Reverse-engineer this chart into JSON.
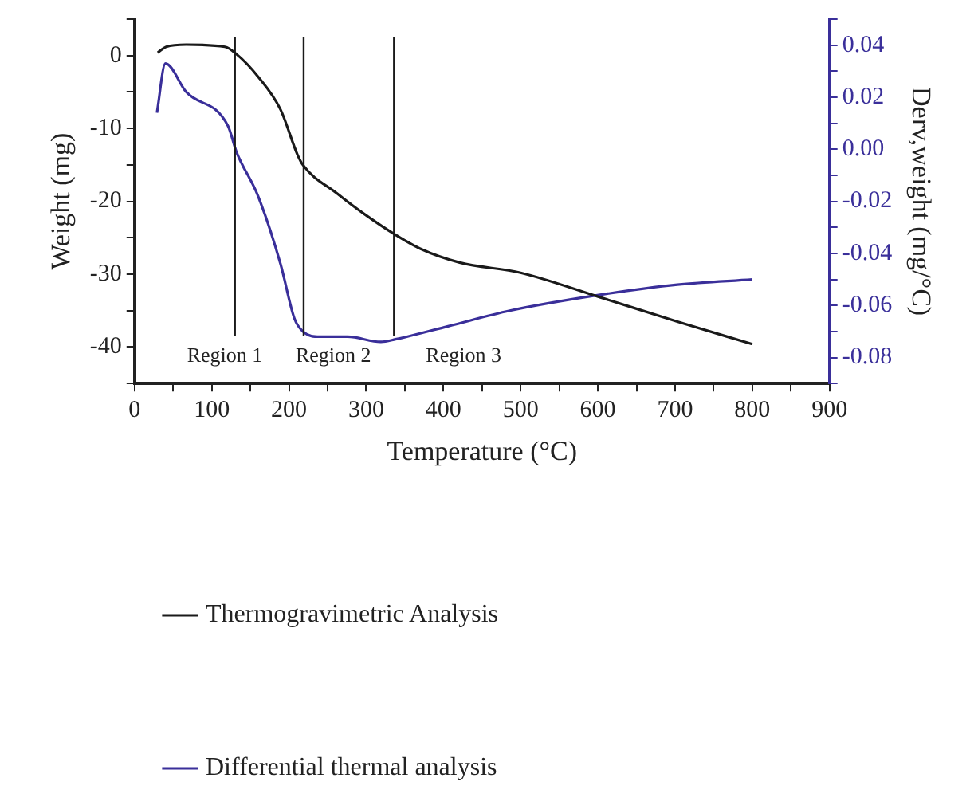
{
  "chart_data": {
    "type": "line",
    "xlabel": "Temperature (°C)",
    "ylabel": "Weight (mg)",
    "y2label": "Derv,weight (mg/°C)",
    "xlim": [
      0,
      900
    ],
    "xticks": [
      0,
      {
        "value": 50,
        "label": null
      },
      100,
      {
        "value": 150,
        "label": null
      },
      200,
      {
        "value": 250,
        "label": null
      },
      300,
      {
        "value": 350,
        "label": null
      },
      400,
      {
        "value": 450,
        "label": null
      },
      500,
      {
        "value": 550,
        "label": null
      },
      600,
      {
        "value": 650,
        "label": null
      },
      700,
      {
        "value": 750,
        "label": null
      },
      800,
      {
        "value": 850,
        "label": null
      },
      900
    ],
    "ylim": [
      -45,
      5
    ],
    "yticks": [
      {
        "value": -45,
        "label": null
      },
      -40,
      {
        "value": -35,
        "label": null
      },
      -30,
      {
        "value": -25,
        "label": null
      },
      -20,
      {
        "value": -15,
        "label": null
      },
      -10,
      {
        "value": -5,
        "label": null
      },
      0,
      {
        "value": 5,
        "label": null
      }
    ],
    "y2lim": [
      -0.09,
      0.05
    ],
    "y2ticks": [
      {
        "value": -0.09,
        "label": null
      },
      {
        "value": -0.08,
        "label": "-0.08"
      },
      {
        "value": -0.07,
        "label": null
      },
      {
        "value": -0.06,
        "label": "-0.06"
      },
      {
        "value": -0.05,
        "label": null
      },
      {
        "value": -0.04,
        "label": "-0.04"
      },
      {
        "value": -0.03,
        "label": null
      },
      {
        "value": -0.02,
        "label": "-0.02"
      },
      {
        "value": -0.01,
        "label": null
      },
      {
        "value": 0,
        "label": "0.00"
      },
      {
        "value": 0.01,
        "label": null
      },
      {
        "value": 0.02,
        "label": "0.02"
      },
      {
        "value": 0.03,
        "label": null
      },
      {
        "value": 0.04,
        "label": "0.04"
      },
      {
        "value": 0.05,
        "label": null
      }
    ],
    "series": [
      {
        "name": "Thermogravimetric Analysis",
        "color": "#1a1a1a",
        "x": [
          30,
          41,
          67,
          117,
          132,
          160,
          189,
          211,
          218,
          262,
          297,
          338,
          370,
          421,
          500,
          601,
          703,
          800
        ],
        "values": [
          0.4,
          1.2,
          1.5,
          1.2,
          0.2,
          -2.9,
          -7.4,
          -13.6,
          -15,
          -18.9,
          -21.7,
          -24.6,
          -26.5,
          -28.4,
          -29.8,
          -33.1,
          -36.5,
          -39.6
        ]
      },
      {
        "name": "Differential thermal analysis",
        "color": "#3a2f9a",
        "axis": "y2",
        "x": [
          29,
          40,
          67,
          121,
          132,
          160,
          189,
          207,
          218,
          240,
          276,
          319,
          338,
          406,
          486,
          601,
          703,
          800
        ],
        "values": [
          0.014,
          0.033,
          0.022,
          0.009,
          -0.001,
          -0.018,
          -0.044,
          -0.065,
          -0.07,
          -0.072,
          -0.072,
          -0.074,
          -0.073,
          -0.068,
          -0.062,
          -0.056,
          -0.052,
          -0.05
        ]
      }
    ],
    "ref_lines": [
      {
        "axis": "x",
        "value": 130,
        "color": "#1a1a1a"
      },
      {
        "axis": "x",
        "value": 219,
        "color": "#1a1a1a"
      },
      {
        "axis": "x",
        "value": 336,
        "color": "#1a1a1a"
      }
    ],
    "annotations": [
      "Region 1",
      "Region 2",
      "Region 3"
    ],
    "legend": "bottom",
    "grid": false,
    "line_style": "solid",
    "marker": "none"
  }
}
